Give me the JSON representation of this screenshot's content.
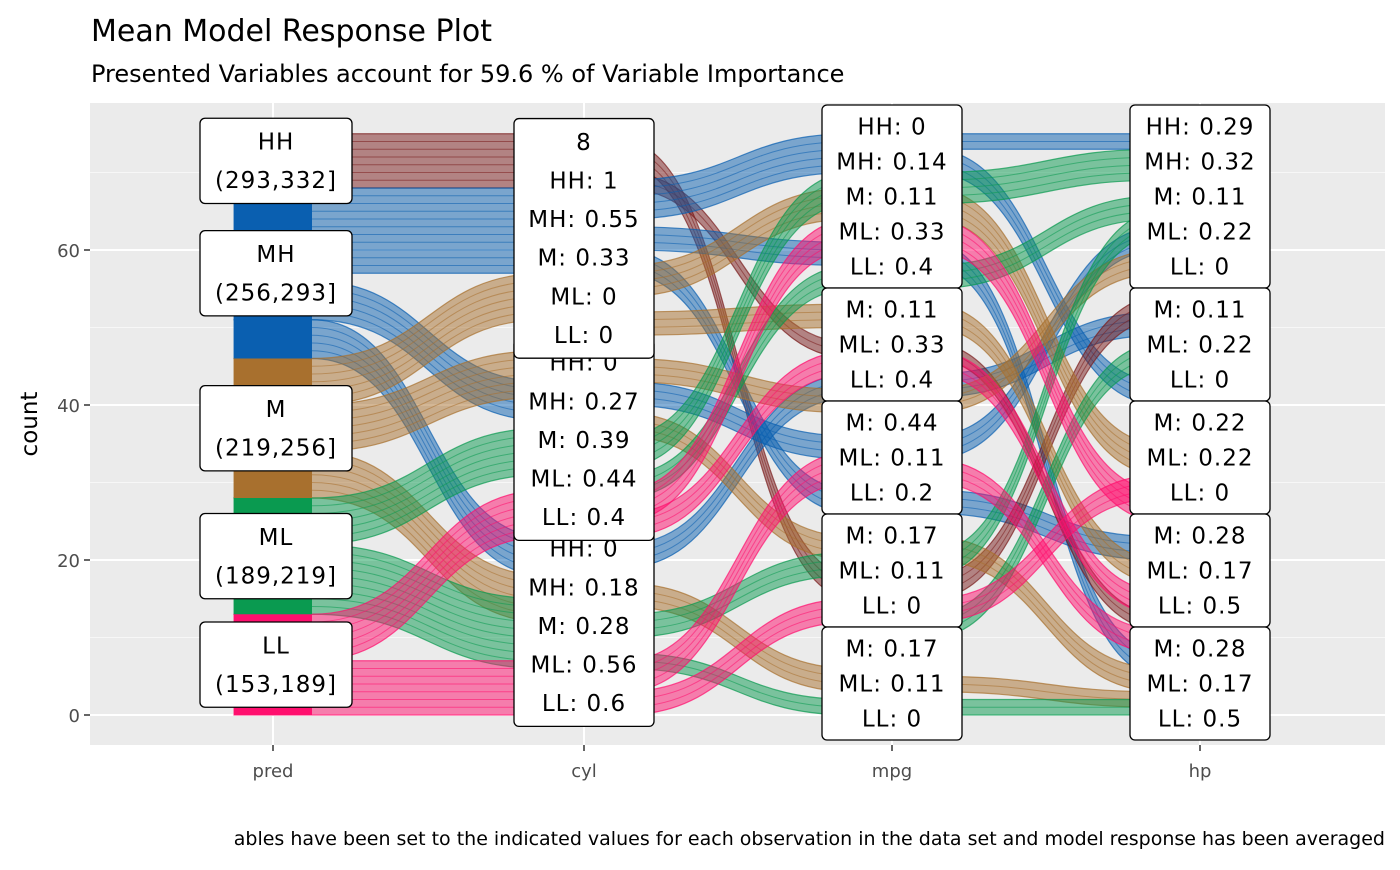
{
  "chart_data": {
    "type": "alluvial",
    "title": "Mean Model Response Plot",
    "subtitle": "Presented Variables account for 59.6 % of Variable Importance",
    "caption": "ables have been set to the indicated values for each observation in the data set and model response has been averaged",
    "ylabel": "count",
    "ylim": [
      -4,
      79
    ],
    "yticks": [
      0,
      20,
      40,
      60
    ],
    "grid": true,
    "axes": [
      "pred",
      "cyl",
      "mpg",
      "hp"
    ],
    "colors": {
      "HH": "#7a1c1c",
      "MH": "#0a5fb0",
      "M": "#a8702e",
      "ML": "#0a9a50",
      "LL": "#ff0f6e"
    },
    "pred_strata": [
      {
        "group": "LL",
        "range": [
          0,
          13
        ],
        "lines": [
          "LL",
          "(153,189]"
        ]
      },
      {
        "group": "ML",
        "range": [
          13,
          28
        ],
        "lines": [
          "ML",
          "(189,219]"
        ]
      },
      {
        "group": "M",
        "range": [
          28,
          46
        ],
        "lines": [
          "M",
          "(219,256]"
        ]
      },
      {
        "group": "MH",
        "range": [
          46,
          68
        ],
        "lines": [
          "MH",
          "(256,293]"
        ]
      },
      {
        "group": "HH",
        "range": [
          68,
          75
        ],
        "lines": [
          "HH",
          "(293,332]"
        ]
      }
    ],
    "strata": {
      "cyl": [
        {
          "range": [
            0,
            23
          ],
          "lines": [
            "HH: 0",
            "MH: 0.18",
            "M: 0.28",
            "ML: 0.56",
            "LL: 0.6"
          ]
        },
        {
          "range": [
            23,
            48
          ],
          "lines": [
            "HH: 0",
            "MH: 0.27",
            "M: 0.39",
            "ML: 0.44",
            "LL: 0.4"
          ]
        },
        {
          "range": [
            48,
            75
          ],
          "lines": [
            "8",
            "HH: 1",
            "MH: 0.55",
            "M: 0.33",
            "ML: 0",
            "LL: 0"
          ]
        }
      ],
      "mpg": [
        {
          "range": [
            0,
            8
          ],
          "lines": [
            "M: 0.17",
            "ML: 0.11",
            "LL: 0"
          ]
        },
        {
          "range": [
            8,
            23
          ],
          "lines": [
            "M: 0.17",
            "ML: 0.11",
            "LL: 0"
          ]
        },
        {
          "range": [
            23,
            38
          ],
          "lines": [
            "M: 0.44",
            "ML: 0.11",
            "LL: 0.2"
          ]
        },
        {
          "range": [
            38,
            53
          ],
          "lines": [
            "M: 0.11",
            "ML: 0.33",
            "LL: 0.4"
          ]
        },
        {
          "range": [
            53,
            75
          ],
          "lines": [
            "HH: 0",
            "MH: 0.14",
            "M: 0.11",
            "ML: 0.33",
            "LL: 0.4"
          ]
        }
      ],
      "hp": [
        {
          "range": [
            0,
            8
          ],
          "lines": [
            "M: 0.28",
            "ML: 0.17",
            "LL: 0.5"
          ]
        },
        {
          "range": [
            8,
            23
          ],
          "lines": [
            "M: 0.28",
            "ML: 0.17",
            "LL: 0.5"
          ]
        },
        {
          "range": [
            23,
            38
          ],
          "lines": [
            "M: 0.22",
            "ML: 0.22",
            "LL: 0"
          ]
        },
        {
          "range": [
            38,
            53
          ],
          "lines": [
            "M: 0.11",
            "ML: 0.22",
            "LL: 0"
          ]
        },
        {
          "range": [
            53,
            75
          ],
          "lines": [
            "HH: 0.29",
            "MH: 0.32",
            "M: 0.11",
            "ML: 0.22",
            "LL: 0"
          ]
        }
      ]
    },
    "flows": [
      [
        [
          68,
          68,
          7,
          "HH"
        ],
        [
          57,
          57,
          11,
          "MH"
        ],
        [
          51,
          38,
          5,
          "MH"
        ],
        [
          46,
          18,
          5,
          "MH"
        ],
        [
          40,
          51,
          6,
          "M"
        ],
        [
          34,
          41,
          6,
          "M"
        ],
        [
          28,
          12,
          6,
          "M"
        ],
        [
          22,
          31,
          6,
          "ML"
        ],
        [
          13,
          6,
          9,
          "ML"
        ],
        [
          7,
          23,
          6,
          "LL"
        ],
        [
          0,
          0,
          7,
          "LL"
        ]
      ],
      [
        [
          71,
          15,
          3,
          "HH"
        ],
        [
          68,
          46,
          2,
          "HH"
        ],
        [
          64,
          70,
          5,
          "MH"
        ],
        [
          60,
          58,
          3,
          "MH"
        ],
        [
          57,
          26,
          3,
          "MH"
        ],
        [
          40,
          33,
          3,
          "MH"
        ],
        [
          19,
          41,
          3,
          "MH"
        ],
        [
          54,
          64,
          4,
          "M"
        ],
        [
          49,
          50,
          3,
          "M"
        ],
        [
          43,
          39,
          3,
          "M"
        ],
        [
          36,
          20,
          3,
          "M"
        ],
        [
          14,
          3,
          3,
          "M"
        ],
        [
          32,
          66,
          4,
          "ML"
        ],
        [
          28,
          55,
          3,
          "ML"
        ],
        [
          10,
          18,
          3,
          "ML"
        ],
        [
          6,
          0,
          2,
          "ML"
        ],
        [
          25,
          60,
          4,
          "LL"
        ],
        [
          23,
          44,
          3,
          "LL"
        ],
        [
          3,
          30,
          4,
          "LL"
        ],
        [
          0,
          12,
          3,
          "LL"
        ]
      ],
      [
        [
          73,
          73,
          2,
          "MH"
        ],
        [
          70,
          40,
          3,
          "MH"
        ],
        [
          58,
          5,
          3,
          "MH"
        ],
        [
          33,
          60,
          3,
          "MH"
        ],
        [
          26,
          20,
          3,
          "MH"
        ],
        [
          41,
          49,
          3,
          "MH"
        ],
        [
          15,
          51,
          3,
          "HH"
        ],
        [
          46,
          11,
          2,
          "HH"
        ],
        [
          64,
          31,
          4,
          "M"
        ],
        [
          50,
          17,
          3,
          "M"
        ],
        [
          39,
          57,
          3,
          "M"
        ],
        [
          20,
          3,
          3,
          "M"
        ],
        [
          3,
          1,
          2,
          "M"
        ],
        [
          66,
          69,
          4,
          "ML"
        ],
        [
          55,
          64,
          3,
          "ML"
        ],
        [
          18,
          62,
          3,
          "ML"
        ],
        [
          0,
          0,
          2,
          "ML"
        ],
        [
          10,
          45,
          3,
          "ML"
        ],
        [
          60,
          25,
          4,
          "LL"
        ],
        [
          44,
          13,
          3,
          "LL"
        ],
        [
          30,
          8,
          3,
          "LL"
        ],
        [
          12,
          28,
          3,
          "LL"
        ]
      ]
    ]
  }
}
